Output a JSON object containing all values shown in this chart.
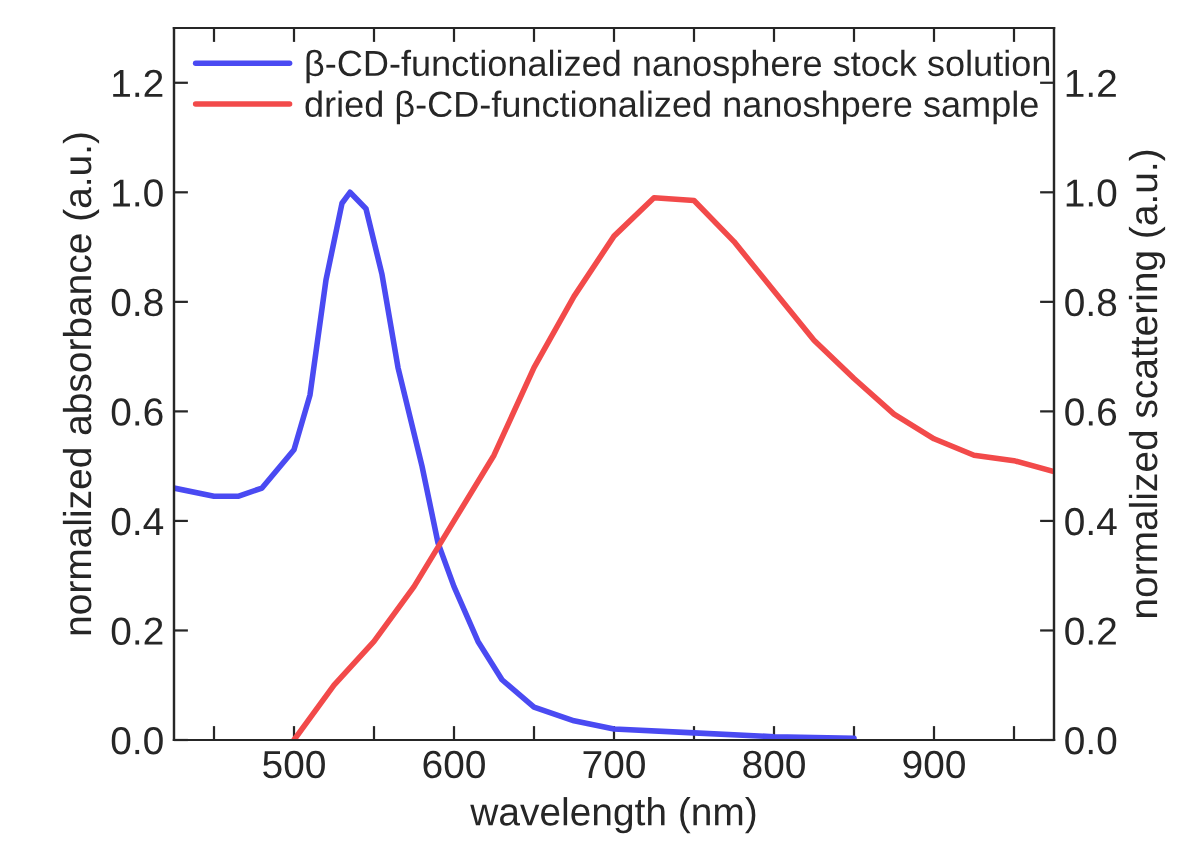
{
  "chart_data": {
    "type": "line",
    "xlabel": "wavelength (nm)",
    "ylabel": "normalized absorbance (a.u.)",
    "y2label": "normalized scattering (a.u.)",
    "xlim": [
      425,
      975
    ],
    "xticks": [
      {
        "value": 450,
        "label": null
      },
      500,
      {
        "value": 550,
        "label": null
      },
      600,
      {
        "value": 650,
        "label": null
      },
      700,
      {
        "value": 750,
        "label": null
      },
      800,
      {
        "value": 850,
        "label": null
      },
      900,
      {
        "value": 950,
        "label": null
      }
    ],
    "ylim": [
      0,
      1.3
    ],
    "yticks": [
      "0.0",
      0.2,
      0.4,
      0.6,
      0.8,
      "1.0",
      1.2
    ],
    "y2lim": [
      0,
      1.3
    ],
    "y2ticks": [
      "0.0",
      0.2,
      0.4,
      0.6,
      0.8,
      "1.0",
      1.2
    ],
    "legend": "top left",
    "grid": false,
    "marker": "none",
    "line_style": "solid",
    "series": [
      {
        "name": "β-CD-functionalized nanosphere stock solution",
        "color": "#4a4af2",
        "x": [
          425,
          450,
          465,
          480,
          500,
          510,
          520,
          530,
          535,
          545,
          555,
          565,
          580,
          590,
          600,
          615,
          630,
          650,
          675,
          700,
          750,
          800,
          850
        ],
        "values": [
          0.46,
          0.445,
          0.445,
          0.46,
          0.53,
          0.63,
          0.84,
          0.98,
          1.0,
          0.97,
          0.85,
          0.68,
          0.5,
          0.36,
          0.28,
          0.18,
          0.11,
          0.06,
          0.035,
          0.02,
          0.013,
          0.006,
          0.003
        ]
      },
      {
        "name": "dried β-CD-functionalized nanoshpere sample",
        "color": "#f24a4a",
        "axis": "y2",
        "x": [
          500,
          525,
          550,
          575,
          600,
          625,
          650,
          675,
          700,
          725,
          750,
          775,
          800,
          825,
          850,
          875,
          900,
          925,
          950,
          975
        ],
        "values": [
          0.0,
          0.1,
          0.18,
          0.28,
          0.4,
          0.52,
          0.68,
          0.81,
          0.92,
          0.99,
          0.985,
          0.91,
          0.82,
          0.73,
          0.66,
          0.595,
          0.55,
          0.52,
          0.51,
          0.49
        ]
      }
    ]
  }
}
